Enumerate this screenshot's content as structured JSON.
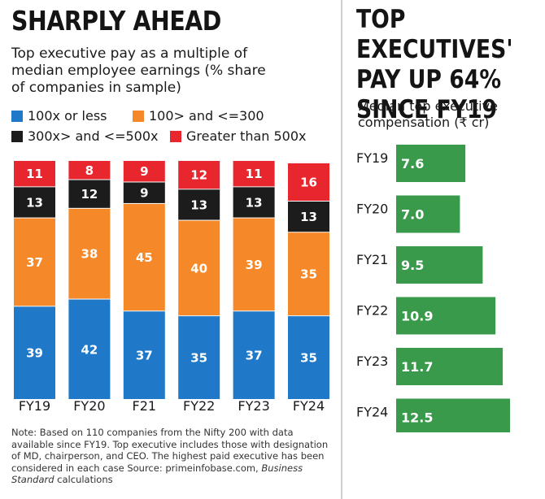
{
  "left_panel": {
    "title": "SHARPLY AHEAD",
    "subtitle": "Top executive pay as a multiple of median employee earnings (% share of companies in sample)",
    "legend": [
      {
        "label": "100x or less",
        "color": "#1f78c8"
      },
      {
        "label": "100> and <=300",
        "color": "#f5892a"
      },
      {
        "label": "300x> and <=500x",
        "color": "#1c1c1c"
      },
      {
        "label": "Greater than 500x",
        "color": "#e8262d"
      }
    ],
    "note_main": "Note: Based on 110 companies from the Nifty 200 with data available since FY19. Top executive includes those with designation of MD, chairperson, and CEO. The highest paid executive has been considered in each case Source: primeinfobase.com,",
    "note_italic": "Business Standard",
    "note_end": " calculations"
  },
  "right_panel": {
    "title": "TOP EXECUTIVES'\nPAY UP 64%\nSINCE FY19",
    "subtitle": "Median top executive compensation (₹ cr)"
  },
  "chart_data": [
    {
      "type": "bar",
      "stacked": true,
      "categories": [
        "FY19",
        "FY20",
        "F21",
        "FY22",
        "FY23",
        "FY24"
      ],
      "series": [
        {
          "name": "100x or less",
          "color": "#1f78c8",
          "values": [
            39,
            42,
            37,
            35,
            37,
            35
          ]
        },
        {
          "name": "100> and <=300",
          "color": "#f5892a",
          "values": [
            37,
            38,
            45,
            40,
            39,
            35
          ]
        },
        {
          "name": "300x> and <=500x",
          "color": "#1c1c1c",
          "values": [
            13,
            12,
            9,
            13,
            13,
            13
          ]
        },
        {
          "name": "Greater than 500x",
          "color": "#e8262d",
          "values": [
            11,
            8,
            9,
            12,
            11,
            16
          ]
        }
      ],
      "xlabel": "",
      "ylabel": "",
      "ylim": [
        0,
        100
      ],
      "grid": false,
      "legend_position": "top"
    },
    {
      "type": "bar",
      "orientation": "horizontal",
      "categories": [
        "FY19",
        "FY20",
        "FY21",
        "FY22",
        "FY23",
        "FY24"
      ],
      "values": [
        7.6,
        7.0,
        9.5,
        10.9,
        11.7,
        12.5
      ],
      "value_labels": [
        "7.6",
        "7.0",
        "9.5",
        "10.9",
        "11.7",
        "12.5"
      ],
      "color": "#3a9a4c",
      "xlabel": "",
      "ylabel": "",
      "xlim": [
        0,
        14
      ],
      "grid": false
    }
  ]
}
